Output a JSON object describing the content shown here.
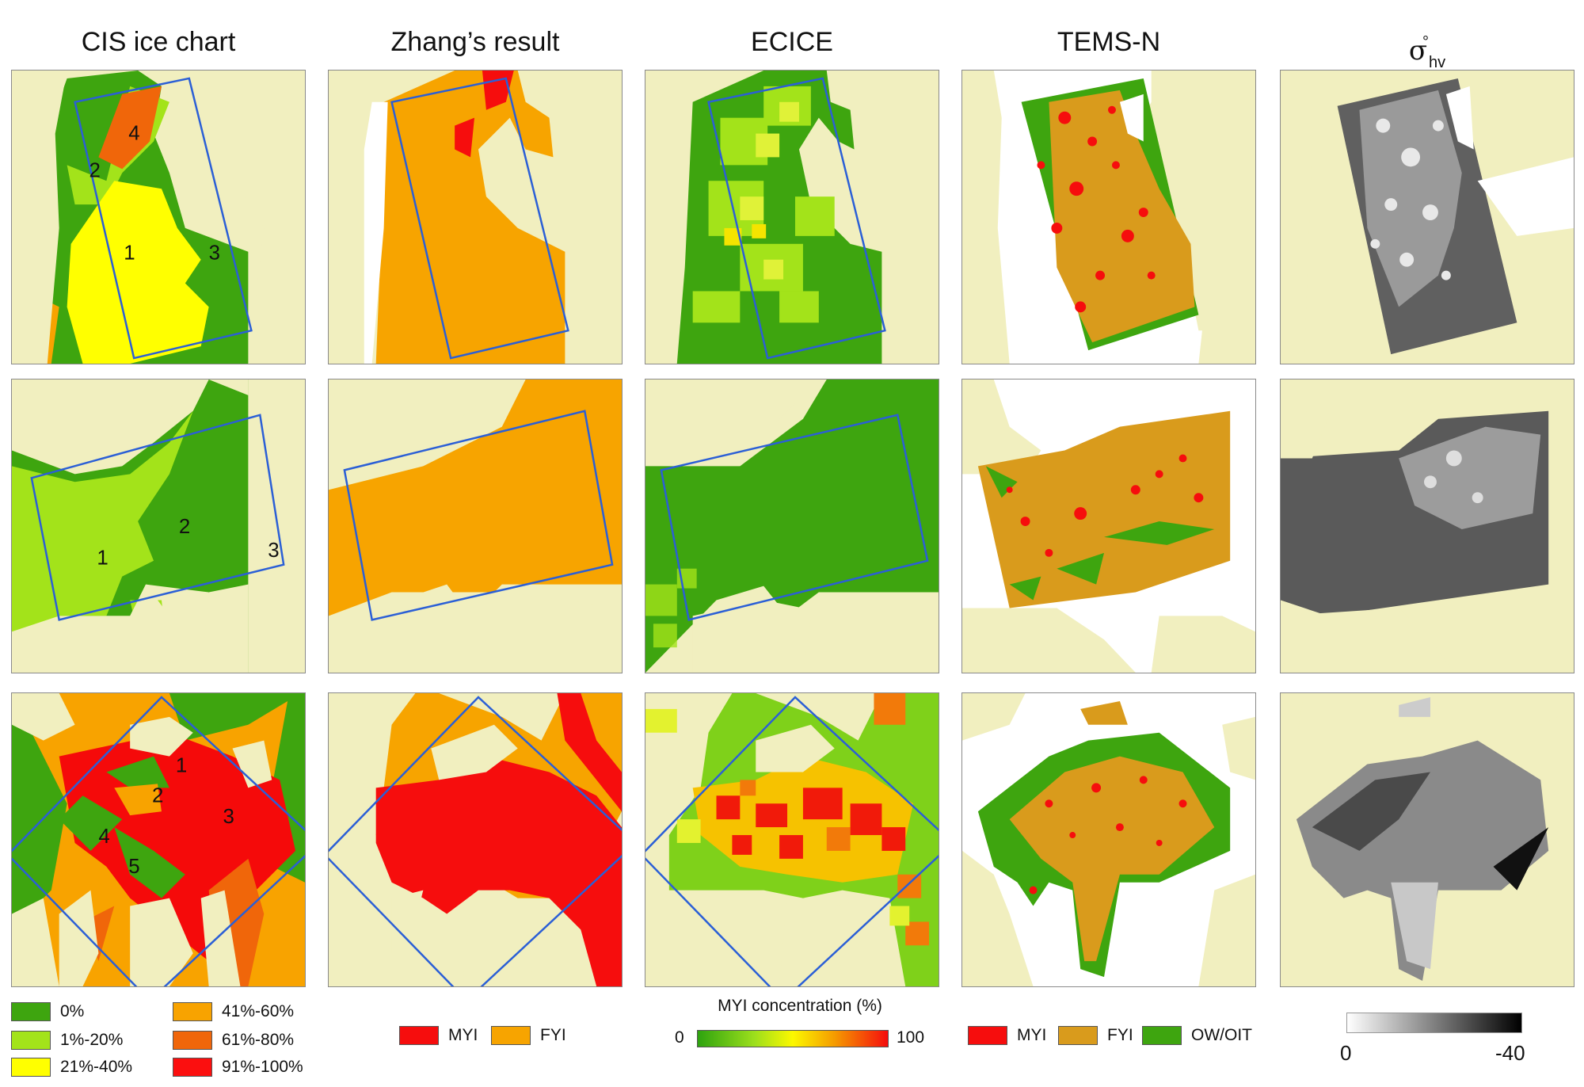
{
  "columns": [
    {
      "title": "CIS ice chart"
    },
    {
      "title": "Zhang’s result"
    },
    {
      "title": "ECICE"
    },
    {
      "title": "TEMS-N"
    },
    {
      "title": "σ",
      "title_sup": "°",
      "title_sub": "hv"
    }
  ],
  "cis_legend": {
    "items": [
      {
        "label": "0%",
        "color": "#3ea50f"
      },
      {
        "label": "1%-20%",
        "color": "#a3e31a"
      },
      {
        "label": "21%-40%",
        "color": "#ffff00"
      },
      {
        "label": "41%-60%",
        "color": "#f8a300"
      },
      {
        "label": "61%-80%",
        "color": "#f0660a"
      },
      {
        "label": "91%-100%",
        "color": "#fb0f0f"
      }
    ]
  },
  "zhang_legend": {
    "items": [
      {
        "label": "MYI",
        "color": "#f60d0d"
      },
      {
        "label": "FYI",
        "color": "#f7a400"
      }
    ]
  },
  "ecice_legend": {
    "title": "MYI concentration (%)",
    "min_label": "0",
    "max_label": "100"
  },
  "tems_legend": {
    "items": [
      {
        "label": "MYI",
        "color": "#f60d0d"
      },
      {
        "label": "FYI",
        "color": "#d99b1c"
      },
      {
        "label": "OW/OIT",
        "color": "#3ea50f"
      }
    ]
  },
  "sigma_legend": {
    "min_label": "0",
    "max_label": "-40"
  },
  "region_numbers": {
    "row1": [
      "1",
      "2",
      "3",
      "4"
    ],
    "row2": [
      "1",
      "2",
      "3"
    ],
    "row3": [
      "1",
      "2",
      "3",
      "4",
      "5"
    ]
  },
  "colors": {
    "land": "#f1efbf",
    "outline": "#2b5fd6",
    "myi": "#f60d0d",
    "fyi": "#f7a400",
    "tems_fyi": "#d99b1c",
    "ow": "#3ea50f"
  }
}
